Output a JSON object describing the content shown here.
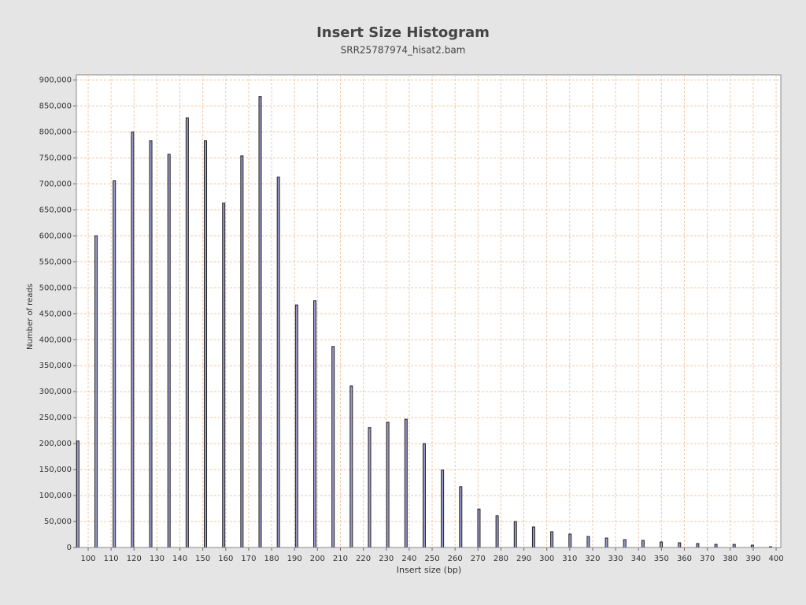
{
  "chart_data": {
    "type": "bar",
    "title": "Insert Size Histogram",
    "subtitle": "SRR25787974_hisat2.bam",
    "x_label": "Insert size (bp)",
    "y_label": "Number of reads",
    "x": [
      95.5,
      103.45,
      111.4,
      119.35,
      127.3,
      135.25,
      143.2,
      151.15,
      159.1,
      167.05,
      175,
      182.95,
      190.9,
      198.85,
      206.8,
      214.75,
      222.7,
      230.65,
      238.6,
      246.55,
      254.5,
      262.45,
      270.4,
      278.35,
      286.3,
      294.25,
      302.2,
      310.15,
      318.1,
      326.05,
      334,
      341.95,
      349.9,
      357.85,
      365.8,
      373.75,
      381.7,
      389.65,
      397.6
    ],
    "values": [
      205000,
      600000,
      706000,
      800000,
      783000,
      757000,
      827000,
      783000,
      663000,
      754000,
      868000,
      713000,
      467000,
      475000,
      387000,
      311000,
      231000,
      241000,
      247000,
      200000,
      149000,
      117000,
      74000,
      61000,
      50000,
      39500,
      30400,
      25800,
      21200,
      18200,
      15200,
      13700,
      10600,
      9100,
      7600,
      6100,
      6000,
      4500,
      1500
    ],
    "color": "#9999cc",
    "xlim": [
      94.85,
      402.05
    ],
    "ylim": [
      0,
      910000
    ],
    "xticks": [
      100,
      110,
      120,
      130,
      140,
      150,
      160,
      170,
      180,
      190,
      200,
      210,
      220,
      230,
      240,
      250,
      260,
      270,
      280,
      290,
      300,
      310,
      320,
      330,
      340,
      350,
      360,
      370,
      380,
      390,
      400
    ],
    "yticks": [
      0,
      {
        "value": 50000,
        "label": "50,000"
      },
      {
        "value": 100000,
        "label": "100,000"
      },
      {
        "value": 150000,
        "label": "150,000"
      },
      {
        "value": 200000,
        "label": "200,000"
      },
      {
        "value": 250000,
        "label": "250,000"
      },
      {
        "value": 300000,
        "label": "300,000"
      },
      {
        "value": 350000,
        "label": "350,000"
      },
      {
        "value": 400000,
        "label": "400,000"
      },
      {
        "value": 450000,
        "label": "450,000"
      },
      {
        "value": 500000,
        "label": "500,000"
      },
      {
        "value": 550000,
        "label": "550,000"
      },
      {
        "value": 600000,
        "label": "600,000"
      },
      {
        "value": 650000,
        "label": "650,000"
      },
      {
        "value": 700000,
        "label": "700,000"
      },
      {
        "value": 750000,
        "label": "750,000"
      },
      {
        "value": 800000,
        "label": "800,000"
      },
      {
        "value": 850000,
        "label": "850,000"
      },
      {
        "value": 900000,
        "label": "900,000"
      }
    ],
    "grid": true
  }
}
